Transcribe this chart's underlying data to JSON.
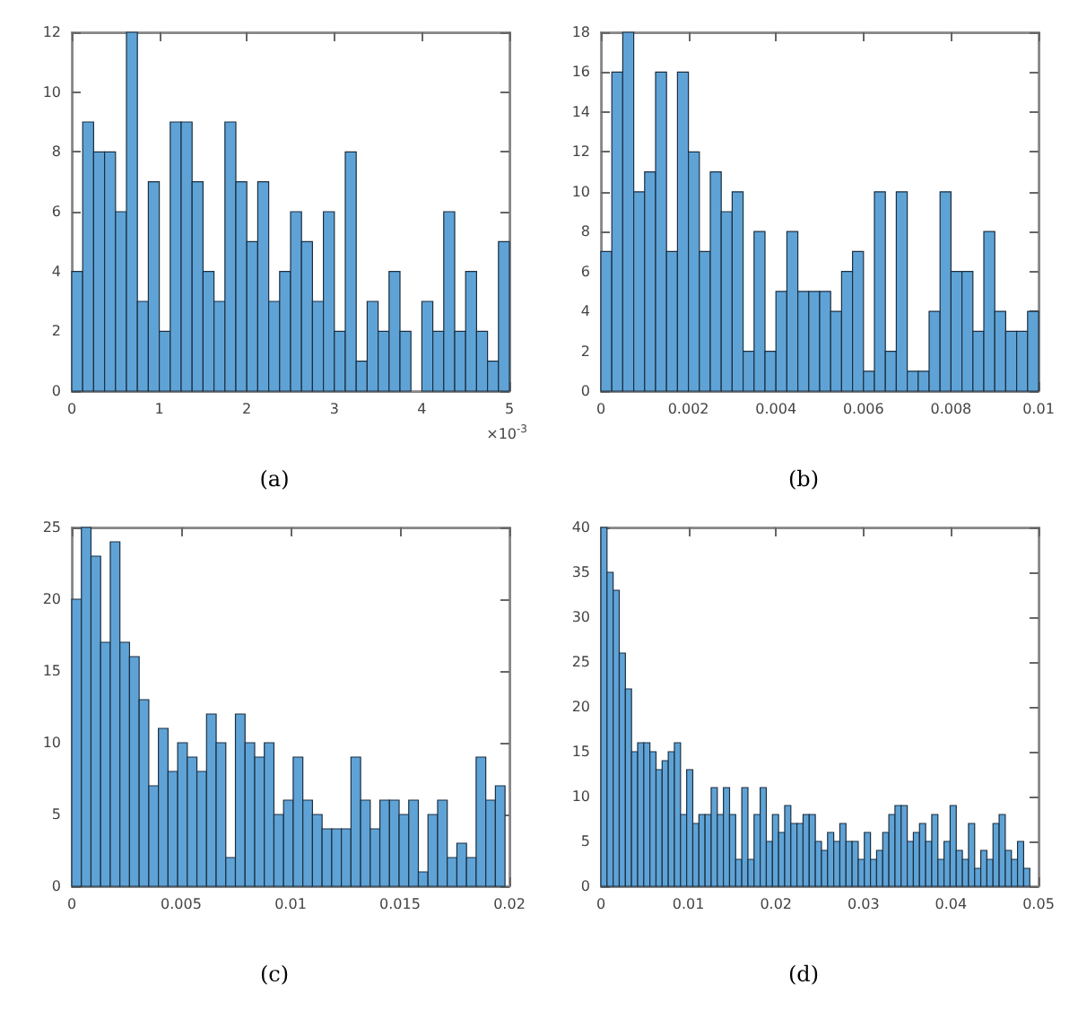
{
  "chart_data": [
    {
      "type": "histogram",
      "title": "(a)",
      "annotations": [
        "×10$^{-3}$"
      ],
      "color": "#5fa3d6",
      "grid": false,
      "bins": [
        0,
        0.125,
        0.25,
        0.375,
        0.5,
        0.625,
        0.75,
        0.875,
        1,
        1.125,
        1.25,
        1.375,
        1.5,
        1.625,
        1.75,
        1.875,
        2,
        2.125,
        2.25,
        2.375,
        2.5,
        2.625,
        2.75,
        2.875,
        3,
        3.125,
        3.25,
        3.375,
        3.5,
        3.625,
        3.75,
        3.875,
        4,
        4.125,
        4.25,
        4.375,
        4.5,
        4.625,
        4.75,
        4.875,
        5
      ],
      "values": [
        4,
        9,
        8,
        8,
        6,
        12,
        3,
        7,
        2,
        9,
        9,
        7,
        4,
        3,
        9,
        7,
        5,
        7,
        3,
        4,
        6,
        5,
        3,
        6,
        2,
        8,
        1,
        3,
        2,
        4,
        2,
        0,
        3,
        2,
        6,
        2,
        4,
        2,
        1,
        5
      ],
      "xlim": [
        0,
        5
      ],
      "xticks": [
        0,
        1,
        2,
        3,
        4,
        5
      ],
      "ylim": [
        0,
        12
      ],
      "yticks": [
        0,
        2,
        4,
        6,
        8,
        10,
        12
      ]
    },
    {
      "type": "histogram",
      "title": "(b)",
      "color": "#5fa3d6",
      "grid": false,
      "bins": [
        0,
        0.00025,
        0.0005,
        0.00075,
        0.001,
        0.00125,
        0.0015,
        0.00175,
        0.002,
        0.00225,
        0.0025,
        0.00275,
        0.003,
        0.00325,
        0.0035,
        0.00375,
        0.004,
        0.00425,
        0.0045,
        0.00475,
        0.005,
        0.00525,
        0.0055,
        0.00575,
        0.006,
        0.00625,
        0.0065,
        0.00675,
        0.007,
        0.00725,
        0.0075,
        0.00775,
        0.008,
        0.00825,
        0.0085,
        0.00875,
        0.009,
        0.00925,
        0.0095,
        0.00975,
        0.01
      ],
      "values": [
        7,
        16,
        18,
        10,
        11,
        16,
        7,
        16,
        12,
        7,
        11,
        9,
        10,
        2,
        8,
        2,
        5,
        8,
        5,
        5,
        5,
        4,
        6,
        7,
        1,
        10,
        2,
        10,
        1,
        1,
        4,
        10,
        6,
        6,
        3,
        8,
        4,
        3,
        3,
        4
      ],
      "xlim": [
        0,
        0.01
      ],
      "xticks": [
        0,
        0.002,
        0.004,
        0.006,
        0.008,
        0.01
      ],
      "ylim": [
        0,
        18
      ],
      "yticks": [
        0,
        2,
        4,
        6,
        8,
        10,
        12,
        14,
        16,
        18
      ]
    },
    {
      "type": "histogram",
      "title": "(c)",
      "color": "#5fa3d6",
      "grid": false,
      "bins": [
        0,
        0.00044,
        0.00088,
        0.00132,
        0.00176,
        0.0022,
        0.00264,
        0.00308,
        0.00352,
        0.00396,
        0.0044,
        0.00484,
        0.00528,
        0.00572,
        0.00616,
        0.0066,
        0.00704,
        0.00748,
        0.00792,
        0.00836,
        0.0088,
        0.00924,
        0.00968,
        0.01012,
        0.01056,
        0.011,
        0.01144,
        0.01188,
        0.01232,
        0.01276,
        0.0132,
        0.01364,
        0.01408,
        0.01452,
        0.01496,
        0.0154,
        0.01584,
        0.01628,
        0.01672,
        0.01716,
        0.0176,
        0.01804,
        0.01848,
        0.01892,
        0.01936,
        0.0198
      ],
      "values": [
        20,
        25,
        23,
        17,
        24,
        17,
        16,
        13,
        7,
        11,
        8,
        10,
        9,
        8,
        12,
        10,
        2,
        12,
        10,
        9,
        10,
        5,
        6,
        9,
        6,
        5,
        4,
        4,
        4,
        9,
        6,
        4,
        6,
        6,
        5,
        6,
        1,
        5,
        6,
        2,
        3,
        2,
        9,
        6,
        7
      ],
      "xlim": [
        0,
        0.02
      ],
      "xticks": [
        0,
        0.005,
        0.01,
        0.015,
        0.02
      ],
      "ylim": [
        0,
        25
      ],
      "yticks": [
        0,
        5,
        10,
        15,
        20,
        25
      ]
    },
    {
      "type": "histogram",
      "title": "(d)",
      "color": "#5fa3d6",
      "grid": false,
      "bins": [
        0,
        0.0007,
        0.0014,
        0.0021,
        0.0028,
        0.0035,
        0.0042,
        0.0049,
        0.0056,
        0.0063,
        0.007,
        0.0077,
        0.0084,
        0.0091,
        0.0098,
        0.0105,
        0.0112,
        0.0119,
        0.0126,
        0.0133,
        0.014,
        0.0147,
        0.0154,
        0.0161,
        0.0168,
        0.0175,
        0.0182,
        0.0189,
        0.0196,
        0.0203,
        0.021,
        0.0217,
        0.0224,
        0.0231,
        0.0238,
        0.0245,
        0.0252,
        0.0259,
        0.0266,
        0.0273,
        0.028,
        0.0287,
        0.0294,
        0.0301,
        0.0308,
        0.0315,
        0.0322,
        0.0329,
        0.0336,
        0.0343,
        0.035,
        0.0357,
        0.0364,
        0.0371,
        0.0378,
        0.0385,
        0.0392,
        0.0399,
        0.0406,
        0.0413,
        0.042,
        0.0427,
        0.0434,
        0.0441,
        0.0448,
        0.0455,
        0.0462,
        0.0469,
        0.0476,
        0.0483,
        0.049
      ],
      "values": [
        40,
        35,
        33,
        26,
        22,
        15,
        16,
        16,
        15,
        13,
        14,
        15,
        16,
        8,
        13,
        7,
        8,
        8,
        11,
        8,
        11,
        8,
        3,
        11,
        3,
        8,
        11,
        5,
        8,
        6,
        9,
        7,
        7,
        8,
        8,
        5,
        4,
        6,
        5,
        7,
        5,
        5,
        3,
        6,
        3,
        4,
        6,
        8,
        9,
        9,
        5,
        6,
        7,
        5,
        8,
        3,
        5,
        9,
        4,
        3,
        7,
        2,
        4,
        3,
        7,
        8,
        4,
        3,
        5,
        2
      ],
      "xlim": [
        0,
        0.05
      ],
      "xticks": [
        0,
        0.01,
        0.02,
        0.03,
        0.04,
        0.05
      ],
      "ylim": [
        0,
        40
      ],
      "yticks": [
        0,
        5,
        10,
        15,
        20,
        25,
        30,
        35,
        40
      ]
    }
  ]
}
